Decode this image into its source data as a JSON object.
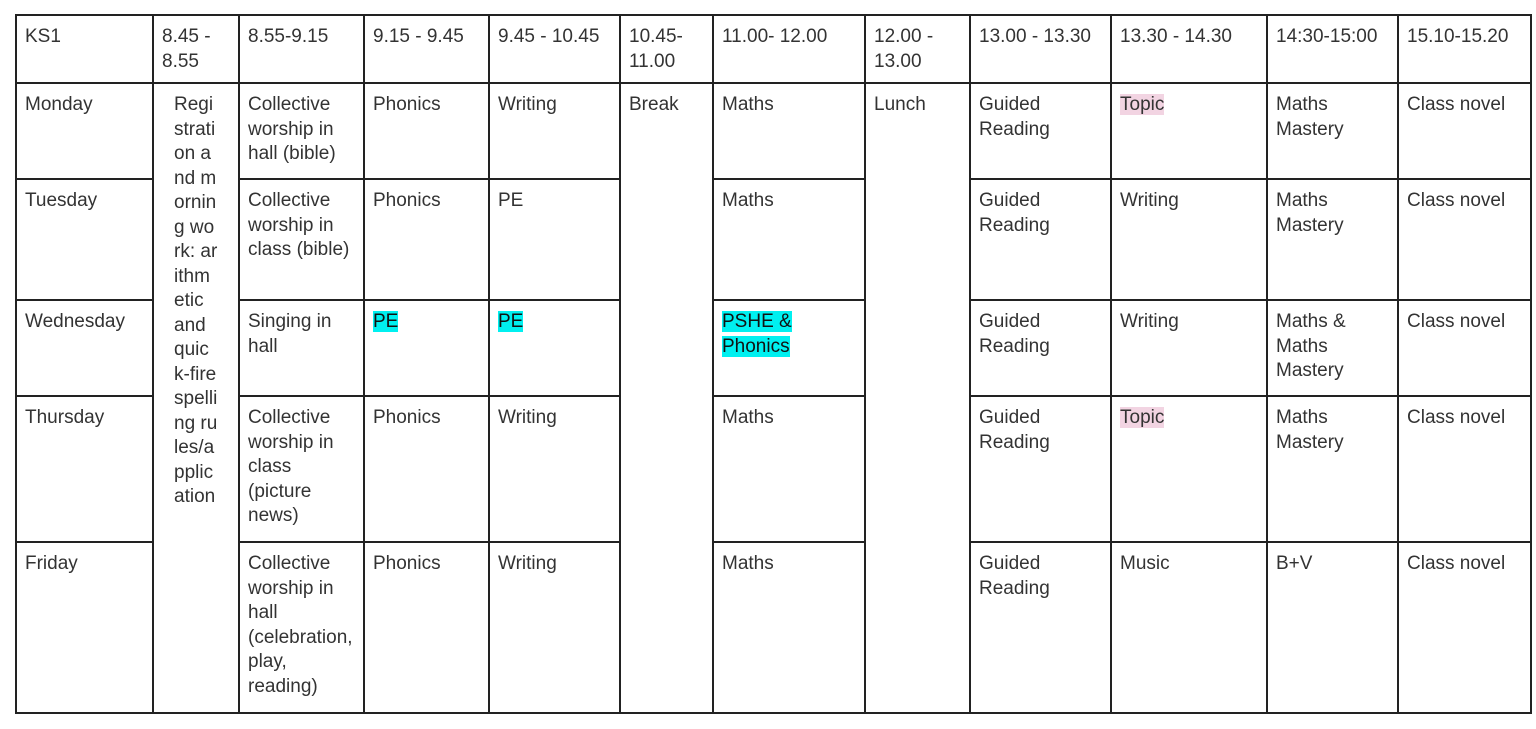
{
  "highlight_colors": {
    "cyan": "#00f0f0",
    "pink": "#f2d4e2"
  },
  "header": [
    "KS1",
    "8.45  - 8.55",
    "8.55-9.15",
    "9.15 - 9.45",
    "9.45 - 10.45",
    "10.45- 11.00",
    "11.00- 12.00",
    "12.00 - 13.00",
    "13.00 - 13.30",
    "13.30 - 14.30",
    "14:30-15:00",
    "15.10-15.20"
  ],
  "spanning": {
    "registration": "Registration and morning work: arithmetic and quick-fire spelling rules/application",
    "break": "Break",
    "lunch": "Lunch"
  },
  "rows": [
    {
      "day": "Monday",
      "worship": "Collective worship in hall (bible)",
      "s1": "Phonics",
      "s2": "Writing",
      "s3": "Maths",
      "s4": "Guided Reading",
      "s5": "Topic",
      "s5_highlight": "pink",
      "s6": "Maths Mastery",
      "s7": "Class novel"
    },
    {
      "day": "Tuesday",
      "worship": "Collective worship in class (bible)",
      "s1": "Phonics",
      "s2": "PE",
      "s3": "Maths",
      "s4": "Guided Reading",
      "s5": "Writing",
      "s6": "Maths Mastery",
      "s7": "Class novel"
    },
    {
      "day": "Wednesday",
      "worship": "Singing in hall",
      "s1": "PE",
      "s1_highlight": "cyan",
      "s2": "PE",
      "s2_highlight": "cyan",
      "s3": "PSHE & Phonics",
      "s3_highlight": "cyan",
      "s4": "Guided Reading",
      "s5": "Writing",
      "s6": "Maths & Maths Mastery",
      "s7": "Class novel"
    },
    {
      "day": "Thursday",
      "worship": "Collective worship in class (picture news)",
      "s1": "Phonics",
      "s2": "Writing",
      "s3": "Maths",
      "s4": "Guided Reading",
      "s5": "Topic",
      "s5_highlight": "pink",
      "s6": "Maths Mastery",
      "s7": "Class novel"
    },
    {
      "day": "Friday",
      "worship": "Collective worship in hall (celebration, play, reading)",
      "s1": "Phonics",
      "s2": "Writing",
      "s3": "Maths",
      "s4": "Guided Reading",
      "s5": "Music",
      "s6": "B+V",
      "s7": "Class novel"
    }
  ]
}
